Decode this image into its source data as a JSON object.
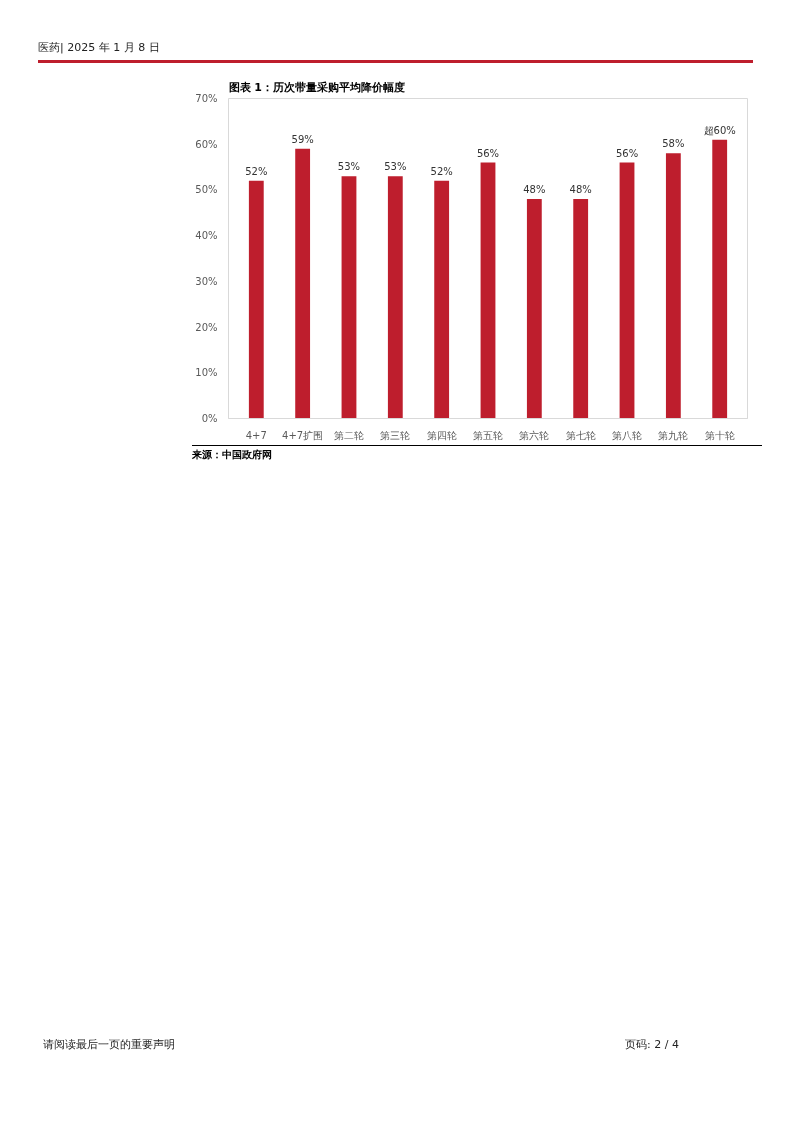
{
  "chart_data": {
    "type": "bar",
    "title": "图表 1：历次带量采购平均降价幅度",
    "categories": [
      "4+7",
      "4+7扩围",
      "第二轮",
      "第三轮",
      "第四轮",
      "第五轮",
      "第六轮",
      "第七轮",
      "第八轮",
      "第九轮",
      "第十轮"
    ],
    "values": [
      52,
      59,
      53,
      53,
      52,
      56,
      48,
      48,
      56,
      58,
      61
    ],
    "value_labels": [
      "52%",
      "59%",
      "53%",
      "53%",
      "52%",
      "56%",
      "48%",
      "48%",
      "56%",
      "58%",
      "超60%"
    ],
    "color": "#be1e2d",
    "ylim": [
      0,
      70
    ],
    "yticks": [
      {
        "value": 0,
        "label": "0%"
      },
      {
        "value": 10,
        "label": "10%"
      },
      {
        "value": 20,
        "label": "20%"
      },
      {
        "value": 30,
        "label": "30%"
      },
      {
        "value": 40,
        "label": "40%"
      },
      {
        "value": 50,
        "label": "50%"
      },
      {
        "value": 60,
        "label": "60%"
      },
      {
        "value": 70,
        "label": "70%"
      }
    ],
    "grid": false,
    "annotations": [
      "来源：中国政府网",
      "医药| 2025 年 1 月 8 日",
      "请阅读最后一页的重要声明",
      "页码: 2 / 4"
    ]
  }
}
